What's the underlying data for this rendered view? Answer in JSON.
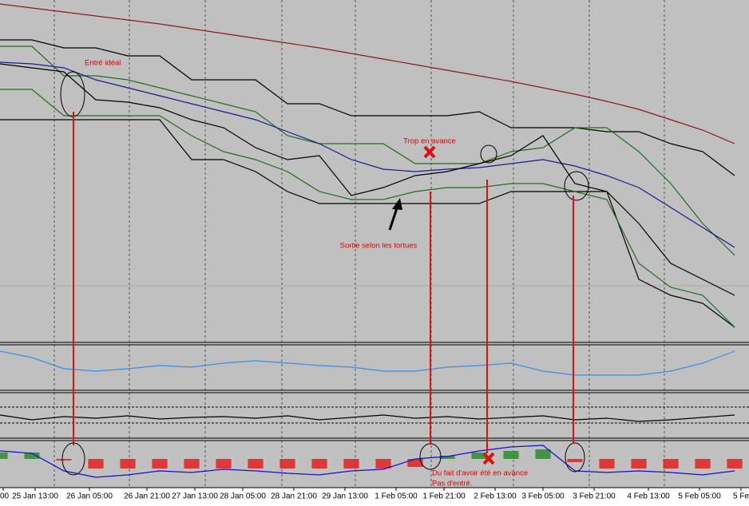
{
  "chart_data": [
    {
      "type": "line",
      "x": [
        0,
        1,
        2,
        3,
        4,
        5,
        6,
        7,
        8,
        9,
        10,
        11,
        12,
        13,
        14,
        15,
        16,
        17,
        18,
        19,
        20,
        21,
        22,
        23
      ],
      "xlim": [
        0,
        23
      ],
      "ylim": [
        0,
        430
      ],
      "series": [
        {
          "color": "#8b1a1a",
          "values": [
            425,
            420,
            415,
            410,
            405,
            400,
            394,
            388,
            382,
            376,
            370,
            363,
            356,
            349,
            342,
            335,
            328,
            320,
            312,
            303,
            293,
            280,
            267,
            250
          ]
        },
        {
          "color": "#000000",
          "values": [
            380,
            380,
            370,
            370,
            360,
            360,
            330,
            330,
            330,
            300,
            300,
            285,
            285,
            285,
            285,
            290,
            270,
            270,
            270,
            265,
            265,
            250,
            240,
            210
          ]
        },
        {
          "color": "#000000",
          "values": [
            280,
            280,
            280,
            280,
            280,
            280,
            230,
            230,
            215,
            190,
            175,
            175,
            175,
            175,
            175,
            175,
            190,
            190,
            190,
            190,
            80,
            60,
            50,
            20
          ]
        },
        {
          "color": "#1f6e1f",
          "values": [
            372,
            372,
            335,
            335,
            330,
            320,
            310,
            300,
            290,
            260,
            250,
            250,
            250,
            225,
            225,
            225,
            240,
            245,
            270,
            270,
            240,
            200,
            150,
            110
          ]
        },
        {
          "color": "#1f6e1f",
          "values": [
            318,
            318,
            285,
            285,
            285,
            285,
            260,
            240,
            230,
            215,
            190,
            180,
            180,
            190,
            195,
            195,
            200,
            200,
            190,
            180,
            100,
            70,
            60,
            20
          ]
        },
        {
          "color": "#1a1a8b",
          "values": [
            352,
            350,
            345,
            330,
            320,
            310,
            300,
            290,
            280,
            265,
            250,
            230,
            218,
            215,
            218,
            220,
            225,
            230,
            222,
            210,
            195,
            170,
            145,
            120
          ]
        },
        {
          "color": "#000000",
          "values": [
            350,
            345,
            340,
            305,
            302,
            295,
            280,
            270,
            245,
            230,
            235,
            185,
            195,
            210,
            215,
            225,
            235,
            260,
            200,
            190,
            150,
            100,
            80,
            60
          ]
        }
      ],
      "annotations": [
        "Entré idéal",
        "Trop en avance",
        "Sortie selon les tortues",
        "Du fait d'avoir été en avance",
        "Pas d'entré."
      ]
    },
    {
      "type": "line",
      "x": [
        0,
        1,
        2,
        3,
        4,
        5,
        6,
        7,
        8,
        9,
        10,
        11,
        12,
        13,
        14,
        15,
        16,
        17,
        18,
        19,
        20,
        21,
        22,
        23
      ],
      "xlim": [
        0,
        23
      ],
      "ylim": [
        0,
        56
      ],
      "series": [
        {
          "color": "#3a8ee6",
          "values": [
            48,
            40,
            26,
            23,
            26,
            30,
            28,
            33,
            36,
            33,
            30,
            28,
            23,
            23,
            28,
            30,
            33,
            23,
            18,
            18,
            18,
            23,
            33,
            48
          ]
        }
      ]
    },
    {
      "type": "line",
      "x": [
        0,
        1,
        2,
        3,
        4,
        5,
        6,
        7,
        8,
        9,
        10,
        11,
        12,
        13,
        14,
        15,
        16,
        17,
        18,
        19,
        20,
        21,
        22,
        23
      ],
      "xlim": [
        0,
        23
      ],
      "ylim": [
        0,
        56
      ],
      "series": [
        {
          "color": "#000000",
          "values": [
            28,
            22,
            26,
            24,
            27,
            23,
            25,
            26,
            24,
            27,
            22,
            25,
            28,
            24,
            26,
            23,
            25,
            27,
            22,
            24,
            20,
            22,
            25,
            28
          ]
        }
      ]
    },
    {
      "type": "bar",
      "x": [
        0,
        1,
        2,
        3,
        4,
        5,
        6,
        7,
        8,
        9,
        10,
        11,
        12,
        13,
        14,
        15,
        16,
        17,
        18,
        19,
        20,
        21,
        22,
        23
      ],
      "xlim": [
        0,
        23
      ],
      "ylim": [
        -35,
        23
      ],
      "positive_color": "#2e8b2e",
      "negative_color": "#e02020",
      "values": [
        8,
        8,
        -2,
        -12,
        -12,
        -12,
        -12,
        -12,
        -12,
        -12,
        -12,
        -12,
        -12,
        -10,
        4,
        8,
        10,
        12,
        -4,
        -12,
        -12,
        -12,
        -12,
        -12
      ],
      "series": [
        {
          "color": "#1010d0",
          "values": [
            10,
            7,
            -15,
            -23,
            -20,
            -15,
            -17,
            -13,
            -15,
            -18,
            -20,
            -15,
            -13,
            0,
            3,
            10,
            15,
            17,
            -15,
            -17,
            -15,
            -17,
            -20,
            -15
          ]
        }
      ],
      "xticks": [
        {
          "value": 0.1,
          "label": "00"
        },
        {
          "value": 1.1,
          "label": "25 Jan 13:00"
        },
        {
          "value": 2.8,
          "label": "26 Jan 05:00"
        },
        {
          "value": 4.6,
          "label": "26 Jan 21:00"
        },
        {
          "value": 6.1,
          "label": "27 Jan 13:00"
        },
        {
          "value": 7.6,
          "label": "28 Jan 05:00"
        },
        {
          "value": 9.2,
          "label": "28 Jan 21:00"
        },
        {
          "value": 10.8,
          "label": "29 Jan 13:00"
        },
        {
          "value": 12.4,
          "label": "1 Feb 05:00"
        },
        {
          "value": 13.9,
          "label": "1 Feb 21:00"
        },
        {
          "value": 15.5,
          "label": "2 Feb 13:00"
        },
        {
          "value": 17,
          "label": "3 Feb 05:00"
        },
        {
          "value": 18.6,
          "label": "3 Feb 21:00"
        },
        {
          "value": 20.3,
          "label": "4 Feb 13:00"
        },
        {
          "value": 21.9,
          "label": "5 Feb 05:00"
        },
        {
          "value": 23.2,
          "label": "5 Fe"
        }
      ]
    }
  ]
}
